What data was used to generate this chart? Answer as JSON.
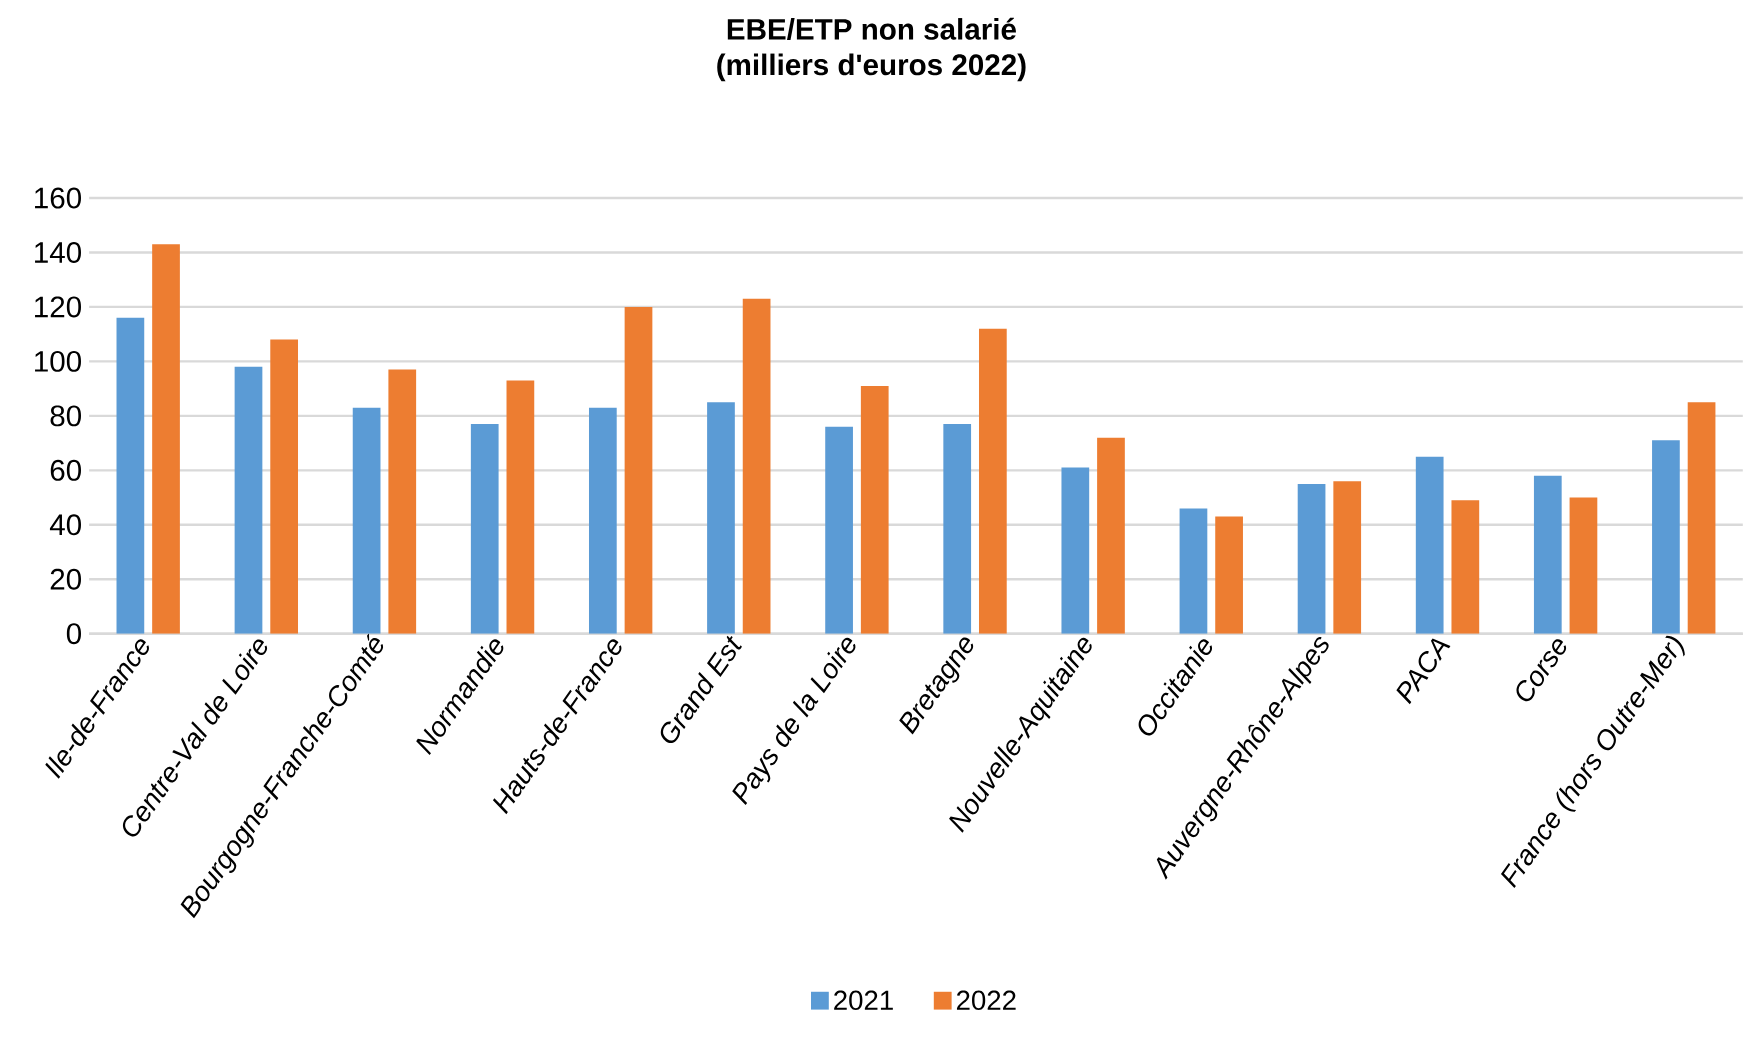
{
  "chart_data": {
    "type": "bar",
    "title": "EBE/ETP non salarié",
    "subtitle": "(milliers d'euros 2022)",
    "categories": [
      "Ile-de-France",
      "Centre-Val de Loire",
      "Bourgogne-Franche-Comté",
      "Normandie",
      "Hauts-de-France",
      "Grand Est",
      "Pays de la Loire",
      "Bretagne",
      "Nouvelle-Aquitaine",
      "Occitanie",
      "Auvergne-Rhône-Alpes",
      "PACA",
      "Corse",
      "France (hors Outre-Mer)"
    ],
    "series": [
      {
        "name": "2021",
        "color": "#5b9bd5",
        "values": [
          116,
          98,
          83,
          77,
          83,
          85,
          76,
          77,
          61,
          46,
          55,
          65,
          58,
          71
        ]
      },
      {
        "name": "2022",
        "color": "#ed7d31",
        "values": [
          143,
          108,
          97,
          93,
          120,
          123,
          91,
          112,
          72,
          43,
          56,
          49,
          50,
          85
        ]
      }
    ],
    "ylim": [
      0,
      160
    ],
    "yticks": [
      0,
      20,
      40,
      60,
      80,
      100,
      120,
      140,
      160
    ],
    "grid": "y",
    "legend": "bottom"
  }
}
